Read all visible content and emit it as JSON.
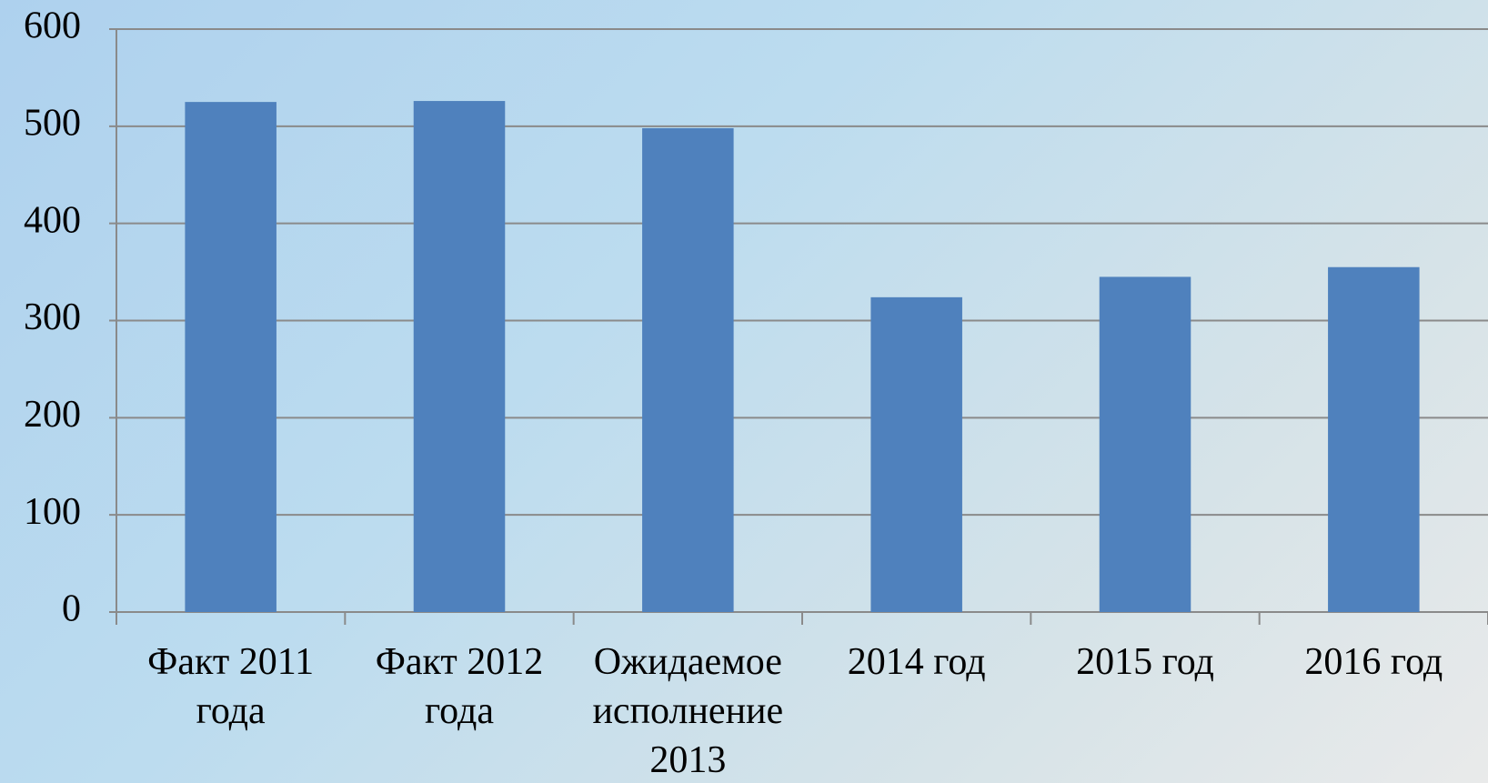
{
  "chart_data": {
    "type": "bar",
    "categories": [
      "Факт 2011 года",
      "Факт 2012 года",
      "Ожидаемое исполнение 2013",
      "2014 год",
      "2015 год",
      "2016 год"
    ],
    "values": [
      525,
      526,
      498,
      324,
      345,
      355
    ],
    "color": "#4f81bd",
    "ylim": [
      0,
      600
    ],
    "yticks": [
      0,
      100,
      200,
      300,
      400,
      500,
      600
    ],
    "grid": true
  }
}
